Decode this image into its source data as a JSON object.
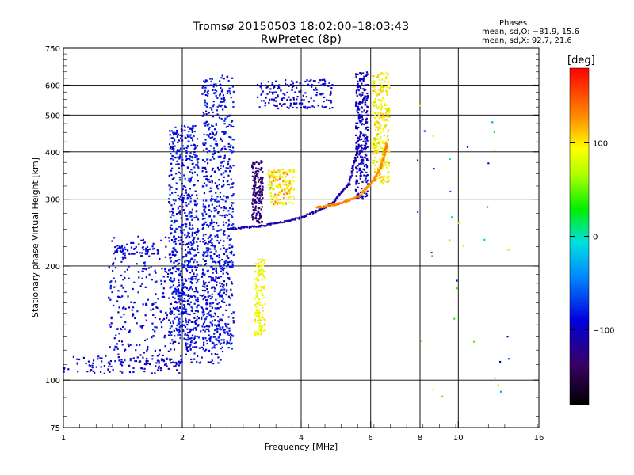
{
  "title": "Tromsø 20150503 18:02:00–18:03:43",
  "subtitle": "RwPretec (8p)",
  "phases": {
    "heading": "Phases",
    "line_o": "mean, sd,O:  −81.9, 15.6",
    "line_x": "mean, sd,X:   92.7, 21.6"
  },
  "colorbar": {
    "unit": "[deg]",
    "ticks": [
      {
        "value": 100,
        "label": "100"
      },
      {
        "value": 0,
        "label": "0"
      },
      {
        "value": -100,
        "label": "−100"
      }
    ],
    "range": [
      -180,
      180
    ]
  },
  "chart_data": {
    "type": "scatter",
    "xlabel": "Frequency [MHz]",
    "ylabel": "Stationary phase Virtual Height [km]",
    "xscale": "log2",
    "yscale": "log",
    "xlim": [
      1,
      16
    ],
    "ylim": [
      75,
      750
    ],
    "xticks": [
      {
        "value": 1,
        "label": "1"
      },
      {
        "value": 2,
        "label": "2"
      },
      {
        "value": 4,
        "label": "4"
      },
      {
        "value": 6,
        "label": "6"
      },
      {
        "value": 8,
        "label": "8"
      },
      {
        "value": 10,
        "label": "10"
      },
      {
        "value": 16,
        "label": "16"
      }
    ],
    "yticks": [
      {
        "value": 75,
        "label": "75"
      },
      {
        "value": 100,
        "label": "100"
      },
      {
        "value": 200,
        "label": "200"
      },
      {
        "value": 300,
        "label": "300"
      },
      {
        "value": 400,
        "label": "400"
      },
      {
        "value": 500,
        "label": "500"
      },
      {
        "value": 600,
        "label": "600"
      },
      {
        "value": 750,
        "label": "750"
      }
    ],
    "grid": true,
    "grid_x": [
      2,
      4,
      6,
      8,
      10
    ],
    "grid_y": [
      100,
      200,
      300,
      400,
      500,
      600
    ],
    "clusters": [
      {
        "note": "E-layer low trace",
        "f": [
          1.0,
          2.0
        ],
        "h": [
          104,
          116
        ],
        "phase": [
          -115,
          -85
        ],
        "n": 110
      },
      {
        "note": "lower F diffuse spread",
        "f": [
          1.3,
          2.6
        ],
        "h": [
          110,
          240
        ],
        "phase": [
          -110,
          -75
        ],
        "n": 520
      },
      {
        "note": "F spread column near 2 MHz",
        "f": [
          1.85,
          2.2
        ],
        "h": [
          120,
          470
        ],
        "phase": [
          -105,
          -70
        ],
        "n": 650
      },
      {
        "note": "F spread column near 2.4 MHz",
        "f": [
          2.25,
          2.7
        ],
        "h": [
          120,
          640
        ],
        "phase": [
          -105,
          -70
        ],
        "n": 700
      },
      {
        "note": "spread near 1.4 MHz",
        "f": [
          1.35,
          1.65
        ],
        "h": [
          215,
          225
        ],
        "phase": [
          -100,
          -80
        ],
        "n": 40
      },
      {
        "note": "dark blue column 3 MHz",
        "f": [
          3.0,
          3.2
        ],
        "h": [
          260,
          380
        ],
        "phase": [
          -145,
          -115
        ],
        "n": 170
      },
      {
        "note": "yellow X trace 3.1 MHz",
        "f": [
          3.05,
          3.25
        ],
        "h": [
          130,
          210
        ],
        "phase": [
          75,
          110
        ],
        "n": 140
      },
      {
        "note": "yellow/orange cloud 3.3-3.8 MHz",
        "f": [
          3.3,
          3.85
        ],
        "h": [
          290,
          360
        ],
        "phase": [
          60,
          140
        ],
        "n": 160
      },
      {
        "note": "upper spread 600 km",
        "f": [
          3.1,
          4.8
        ],
        "h": [
          520,
          620
        ],
        "phase": [
          -115,
          -80
        ],
        "n": 170
      },
      {
        "note": "dark F trace 6 MHz",
        "f": [
          5.5,
          5.9
        ],
        "h": [
          300,
          650
        ],
        "phase": [
          -120,
          -85
        ],
        "n": 280
      },
      {
        "note": "yellow X trace 6.2-6.6 MHz",
        "f": [
          6.1,
          6.7
        ],
        "h": [
          330,
          650
        ],
        "phase": [
          70,
          120
        ],
        "n": 260
      },
      {
        "note": "sparse isolated points",
        "f": [
          7.5,
          14
        ],
        "h": [
          90,
          620
        ],
        "phase": [
          -110,
          120
        ],
        "n": 35
      }
    ],
    "curves": [
      {
        "note": "O-mode F trace",
        "f": [
          2.6,
          3.2,
          4.0,
          4.8,
          5.3,
          5.6
        ],
        "h": [
          250,
          255,
          268,
          292,
          330,
          420
        ],
        "phase": -110
      },
      {
        "note": "X-mode F trace",
        "f": [
          4.4,
          5.0,
          5.6,
          6.1,
          6.4,
          6.6
        ],
        "h": [
          285,
          292,
          305,
          335,
          370,
          420
        ],
        "phase": 130
      }
    ]
  }
}
